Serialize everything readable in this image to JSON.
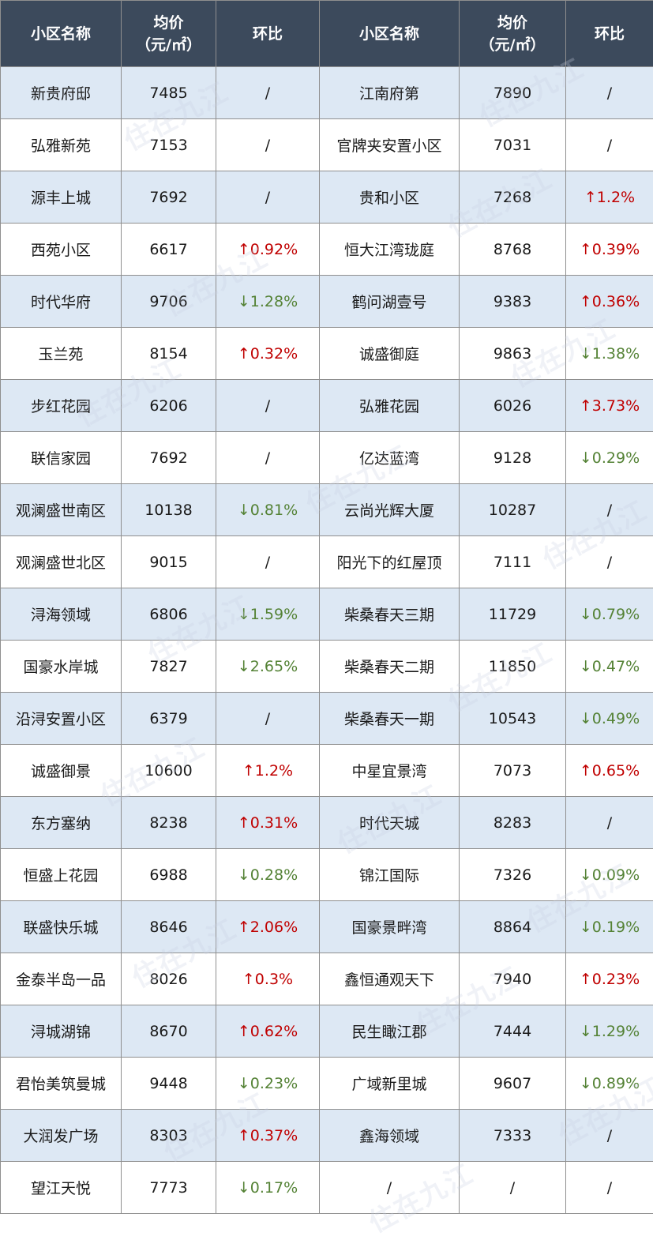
{
  "header": {
    "name_label": "小区名称",
    "price_label_line1": "均价",
    "price_label_line2": "（元/㎡）",
    "change_label": "环比"
  },
  "watermark_text": "住在九江",
  "colors": {
    "header_bg": "#3c4a5c",
    "row_shade": "#dde8f4",
    "up": "#c00000",
    "down": "#548235"
  },
  "rows": [
    {
      "left": {
        "name": "新贵府邸",
        "price": "7485",
        "change": "/",
        "dir": "none"
      },
      "right": {
        "name": "江南府第",
        "price": "7890",
        "change": "/",
        "dir": "none"
      }
    },
    {
      "left": {
        "name": "弘雅新苑",
        "price": "7153",
        "change": "/",
        "dir": "none"
      },
      "right": {
        "name": "官牌夹安置小区",
        "price": "7031",
        "change": "/",
        "dir": "none"
      }
    },
    {
      "left": {
        "name": "源丰上城",
        "price": "7692",
        "change": "/",
        "dir": "none"
      },
      "right": {
        "name": "贵和小区",
        "price": "7268",
        "change": "↑1.2%",
        "dir": "up"
      }
    },
    {
      "left": {
        "name": "西苑小区",
        "price": "6617",
        "change": "↑0.92%",
        "dir": "up"
      },
      "right": {
        "name": "恒大江湾珑庭",
        "price": "8768",
        "change": "↑0.39%",
        "dir": "up"
      }
    },
    {
      "left": {
        "name": "时代华府",
        "price": "9706",
        "change": "↓1.28%",
        "dir": "down"
      },
      "right": {
        "name": "鹤问湖壹号",
        "price": "9383",
        "change": "↑0.36%",
        "dir": "up"
      }
    },
    {
      "left": {
        "name": "玉兰苑",
        "price": "8154",
        "change": "↑0.32%",
        "dir": "up"
      },
      "right": {
        "name": "诚盛御庭",
        "price": "9863",
        "change": "↓1.38%",
        "dir": "down"
      }
    },
    {
      "left": {
        "name": "步红花园",
        "price": "6206",
        "change": "/",
        "dir": "none"
      },
      "right": {
        "name": "弘雅花园",
        "price": "6026",
        "change": "↑3.73%",
        "dir": "up"
      }
    },
    {
      "left": {
        "name": "联信家园",
        "price": "7692",
        "change": "/",
        "dir": "none"
      },
      "right": {
        "name": "亿达蓝湾",
        "price": "9128",
        "change": "↓0.29%",
        "dir": "down"
      }
    },
    {
      "left": {
        "name": "观澜盛世南区",
        "price": "10138",
        "change": "↓0.81%",
        "dir": "down"
      },
      "right": {
        "name": "云尚光辉大厦",
        "price": "10287",
        "change": "/",
        "dir": "none"
      }
    },
    {
      "left": {
        "name": "观澜盛世北区",
        "price": "9015",
        "change": "/",
        "dir": "none"
      },
      "right": {
        "name": "阳光下的红屋顶",
        "price": "7111",
        "change": "/",
        "dir": "none"
      }
    },
    {
      "left": {
        "name": "浔海领域",
        "price": "6806",
        "change": "↓1.59%",
        "dir": "down"
      },
      "right": {
        "name": "柴桑春天三期",
        "price": "11729",
        "change": "↓0.79%",
        "dir": "down"
      }
    },
    {
      "left": {
        "name": "国豪水岸城",
        "price": "7827",
        "change": "↓2.65%",
        "dir": "down"
      },
      "right": {
        "name": "柴桑春天二期",
        "price": "11850",
        "change": "↓0.47%",
        "dir": "down"
      }
    },
    {
      "left": {
        "name": "沿浔安置小区",
        "price": "6379",
        "change": "/",
        "dir": "none"
      },
      "right": {
        "name": "柴桑春天一期",
        "price": "10543",
        "change": "↓0.49%",
        "dir": "down"
      }
    },
    {
      "left": {
        "name": "诚盛御景",
        "price": "10600",
        "change": "↑1.2%",
        "dir": "up"
      },
      "right": {
        "name": "中星宜景湾",
        "price": "7073",
        "change": "↑0.65%",
        "dir": "up"
      }
    },
    {
      "left": {
        "name": "东方塞纳",
        "price": "8238",
        "change": "↑0.31%",
        "dir": "up"
      },
      "right": {
        "name": "时代天城",
        "price": "8283",
        "change": "/",
        "dir": "none"
      }
    },
    {
      "left": {
        "name": "恒盛上花园",
        "price": "6988",
        "change": "↓0.28%",
        "dir": "down"
      },
      "right": {
        "name": "锦江国际",
        "price": "7326",
        "change": "↓0.09%",
        "dir": "down"
      }
    },
    {
      "left": {
        "name": "联盛快乐城",
        "price": "8646",
        "change": "↑2.06%",
        "dir": "up"
      },
      "right": {
        "name": "国豪景畔湾",
        "price": "8864",
        "change": "↓0.19%",
        "dir": "down"
      }
    },
    {
      "left": {
        "name": "金泰半岛一品",
        "price": "8026",
        "change": "↑0.3%",
        "dir": "up"
      },
      "right": {
        "name": "鑫恒通观天下",
        "price": "7940",
        "change": "↑0.23%",
        "dir": "up"
      }
    },
    {
      "left": {
        "name": "浔城湖锦",
        "price": "8670",
        "change": "↑0.62%",
        "dir": "up"
      },
      "right": {
        "name": "民生瞰江郡",
        "price": "7444",
        "change": "↓1.29%",
        "dir": "down"
      }
    },
    {
      "left": {
        "name": "君怡美筑曼城",
        "price": "9448",
        "change": "↓0.23%",
        "dir": "down"
      },
      "right": {
        "name": "广域新里城",
        "price": "9607",
        "change": "↓0.89%",
        "dir": "down"
      }
    },
    {
      "left": {
        "name": "大润发广场",
        "price": "8303",
        "change": "↑0.37%",
        "dir": "up"
      },
      "right": {
        "name": "鑫海领域",
        "price": "7333",
        "change": "/",
        "dir": "none"
      }
    },
    {
      "left": {
        "name": "望江天悦",
        "price": "7773",
        "change": "↓0.17%",
        "dir": "down"
      },
      "right": {
        "name": "/",
        "price": "/",
        "change": "/",
        "dir": "none"
      }
    }
  ]
}
